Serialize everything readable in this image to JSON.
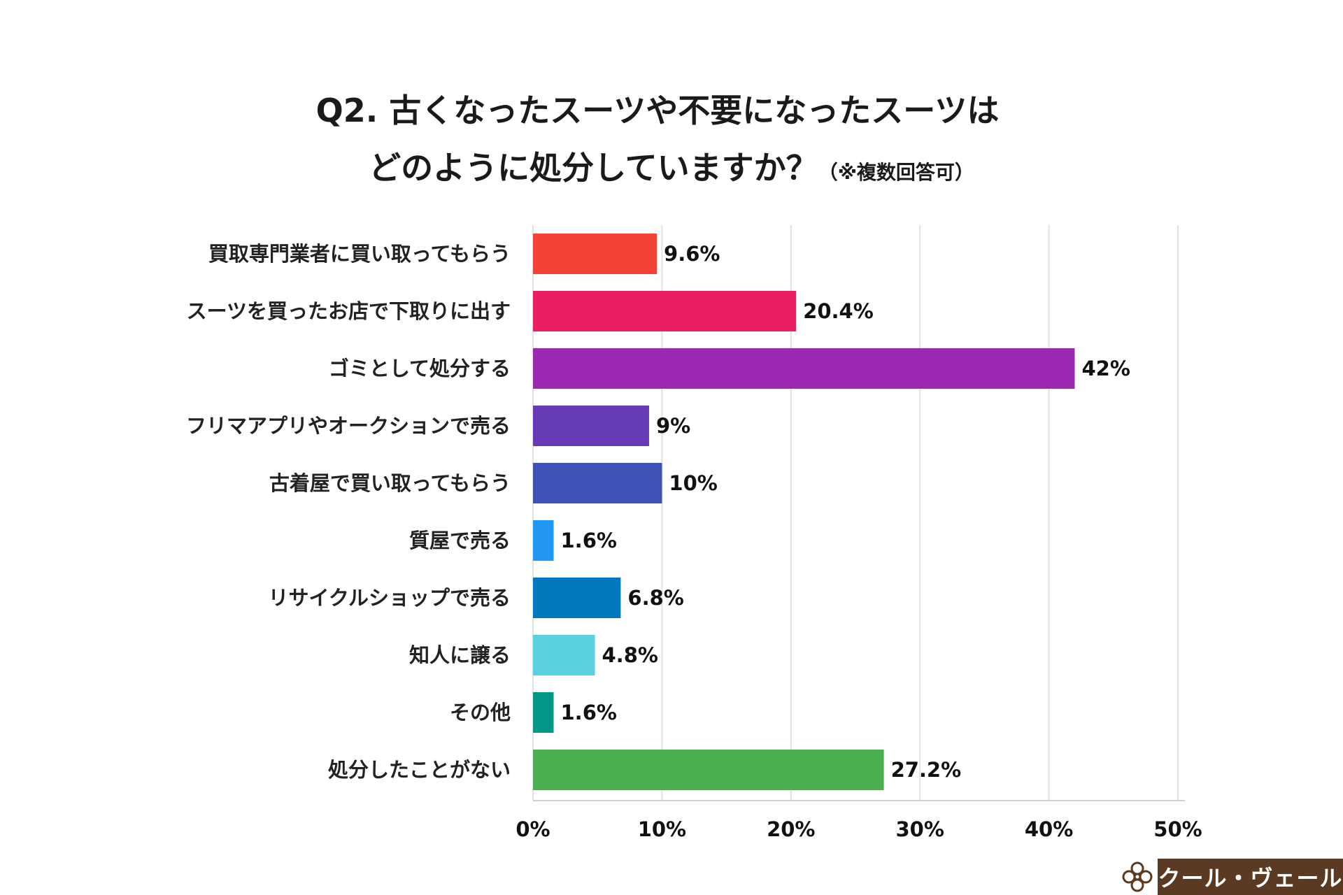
{
  "title": {
    "line1": "Q2. 古くなったスーツや不要になったスーツは",
    "line2": "どのように処分していますか？",
    "note": "（※複数回答可）"
  },
  "brand": {
    "name": "クール・ヴェール",
    "icon": "ornament-icon"
  },
  "chart_data": {
    "type": "bar",
    "orientation": "horizontal",
    "title": "Q2. 古くなったスーツや不要になったスーツは どのように処分していますか？（※複数回答可）",
    "xlabel": "",
    "ylabel": "",
    "xlim": [
      0,
      50
    ],
    "xticks": [
      0,
      10,
      20,
      30,
      40,
      50
    ],
    "tick_labels": [
      "0%",
      "10%",
      "20%",
      "30%",
      "40%",
      "50%"
    ],
    "grid": true,
    "categories": [
      "買取専門業者に買い取ってもらう",
      "スーツを買ったお店で下取りに出す",
      "ゴミとして処分する",
      "フリマアプリやオークションで売る",
      "古着屋で買い取ってもらう",
      "質屋で売る",
      "リサイクルショップで売る",
      "知人に譲る",
      "その他",
      "処分したことがない"
    ],
    "values": [
      9.6,
      20.4,
      42,
      9,
      10,
      1.6,
      6.8,
      4.8,
      1.6,
      27.2
    ],
    "value_labels": [
      "9.6%",
      "20.4%",
      "42%",
      "9%",
      "10%",
      "1.6%",
      "6.8%",
      "4.8%",
      "1.6%",
      "27.2%"
    ],
    "colors": [
      "#f44336",
      "#e91e63",
      "#9c27b0",
      "#673ab7",
      "#3f51b5",
      "#2196f3",
      "#0277bd",
      "#5bd1e0",
      "#009688",
      "#4caf50"
    ]
  }
}
